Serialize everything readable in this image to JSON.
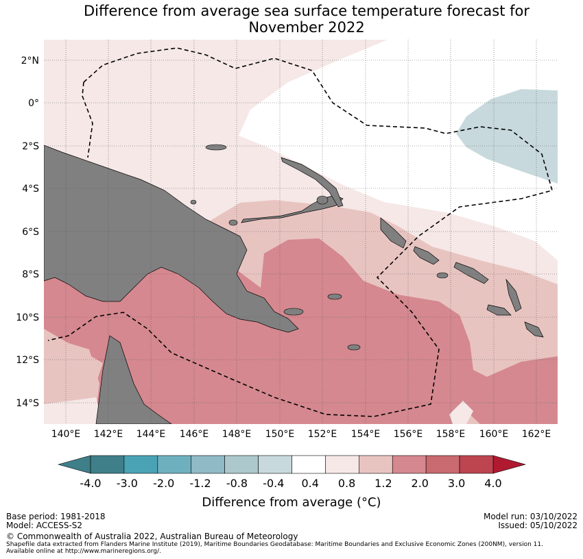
{
  "title_line1": "Difference from average sea surface temperature forecast for",
  "title_line2": "November 2022",
  "lon_ticks": [
    "140°E",
    "142°E",
    "144°E",
    "146°E",
    "148°E",
    "150°E",
    "152°E",
    "154°E",
    "156°E",
    "158°E",
    "160°E",
    "162°E"
  ],
  "lat_ticks": [
    "2°N",
    "0°",
    "2°S",
    "4°S",
    "6°S",
    "8°S",
    "10°S",
    "12°S",
    "14°S"
  ],
  "colorbar": {
    "ticks": [
      "-4.0",
      "-3.0",
      "-2.0",
      "-1.2",
      "-0.8",
      "-0.4",
      "0.4",
      "0.8",
      "1.2",
      "2.0",
      "3.0",
      "4.0"
    ],
    "colors": [
      "#3f7f8a",
      "#4aa3b5",
      "#6fb0bf",
      "#8fbac6",
      "#adc8cc",
      "#c7d9dd",
      "#ffffff",
      "#f5e8e7",
      "#e8c4c1",
      "#d5888f",
      "#c96970",
      "#bd4550"
    ],
    "label": "Difference from average ($^\\circ$C)",
    "label_display": "Difference from average (°C)"
  },
  "colors": {
    "land": "#808080",
    "light_pink": "#f5e8e7",
    "mid_pink": "#e8c4c1",
    "deep_pink": "#d5888f",
    "blue": "#c7d9dd"
  },
  "footer": {
    "base_period": "Base period: 1981-2018",
    "model": "Model: ACCESS-S2",
    "model_run": "Model run: 03/10/2022",
    "issued": "Issued: 05/10/2022",
    "copyright": "© Commonwealth of Australia 2022, Australian Bureau of Meteorology",
    "shapefile_line1": "Shapefile data extracted from Flanders Marine Institute (2019), Maritime Boundaries Geodatabase: Maritime Boundaries and Exclusive Economic Zones (200NM), version 11.",
    "shapefile_line2": "Available online at http://www.marineregions.org/."
  }
}
